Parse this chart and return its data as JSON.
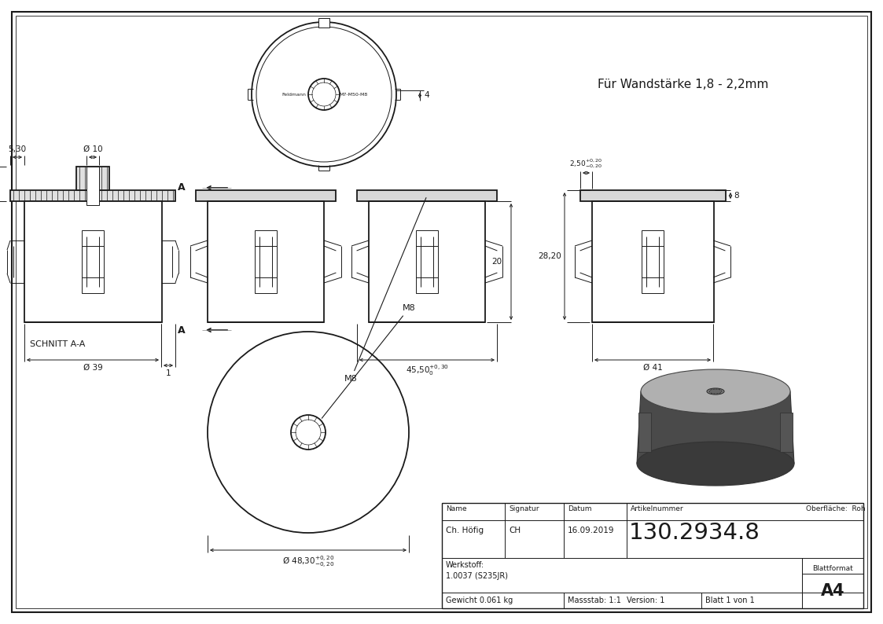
{
  "line_color": "#1a1a1a",
  "title_text": "Für Wandstärke 1,8 - 2,2mm",
  "article_number": "130.2934.8",
  "name": "Ch. Höfig",
  "signatur": "CH",
  "datum": "16.09.2019",
  "werkstoff_label": "Werkstoff:",
  "werkstoff_value": "1.0037 (S235JR)",
  "gewicht": "Gewicht 0.061 kg",
  "massstab": "Massstab: 1:1",
  "version": "Version: 1",
  "blatt": "Blatt 1 von 1",
  "blattformat": "Blattformat",
  "blattformat_val": "A4",
  "oberflache": "Oberfläche:  Roh",
  "name_label": "Name",
  "sig_label": "Signatur",
  "datum_label": "Datum",
  "art_label": "Artikelnummer"
}
